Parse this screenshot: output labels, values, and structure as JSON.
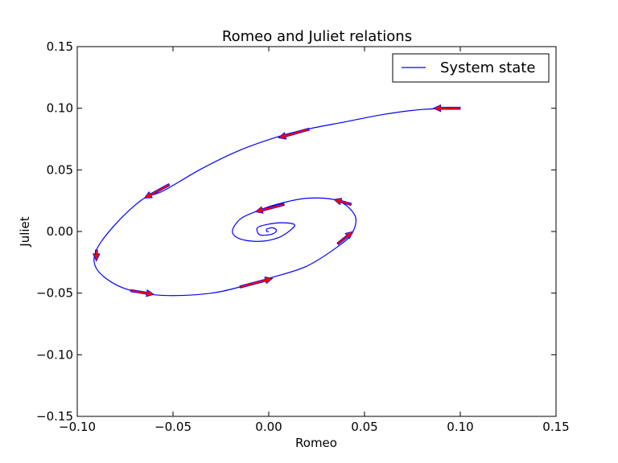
{
  "chart_data": {
    "type": "line",
    "title": "Romeo and Juliet relations",
    "xlabel": "Romeo",
    "ylabel": "Juliet",
    "xlim": [
      -0.1,
      0.15
    ],
    "ylim": [
      -0.15,
      0.15
    ],
    "x_ticks": [
      "−0.10",
      "−0.05",
      "0.00",
      "0.05",
      "0.10",
      "0.15"
    ],
    "x_tick_values": [
      -0.1,
      -0.05,
      0.0,
      0.05,
      0.1,
      0.15
    ],
    "y_ticks": [
      "−0.15",
      "−0.10",
      "−0.05",
      "0.00",
      "0.05",
      "0.10",
      "0.15"
    ],
    "y_tick_values": [
      -0.15,
      -0.1,
      -0.05,
      0.0,
      0.05,
      0.1,
      0.15
    ],
    "grid": false,
    "legend": {
      "position": "top-right",
      "entries": [
        "System state"
      ]
    },
    "series": [
      {
        "name": "System state",
        "color": "#0000ff",
        "trajectory": {
          "start": [
            0.1,
            0.1
          ],
          "decay_factor_per_revolution": 0.31,
          "revolutions": 6,
          "shape": "elliptical spiral converging to origin"
        },
        "points": [
          [
            0.1,
            0.1
          ],
          [
            0.08,
            0.099
          ],
          [
            0.06,
            0.095
          ],
          [
            0.04,
            0.089
          ],
          [
            0.02,
            0.083
          ],
          [
            0.005,
            0.077
          ],
          [
            -0.015,
            0.066
          ],
          [
            -0.035,
            0.051
          ],
          [
            -0.055,
            0.033
          ],
          [
            -0.066,
            0.026
          ],
          [
            -0.08,
            0.006
          ],
          [
            -0.09,
            -0.015
          ],
          [
            -0.09,
            -0.03
          ],
          [
            -0.08,
            -0.043
          ],
          [
            -0.066,
            -0.05
          ],
          [
            -0.05,
            -0.052
          ],
          [
            -0.03,
            -0.05
          ],
          [
            -0.015,
            -0.045
          ],
          [
            0.0,
            -0.038
          ],
          [
            0.02,
            -0.028
          ],
          [
            0.038,
            -0.01
          ],
          [
            0.044,
            0.0
          ],
          [
            0.045,
            0.013
          ],
          [
            0.036,
            0.025
          ],
          [
            0.02,
            0.027
          ],
          [
            0.004,
            0.022
          ],
          [
            -0.007,
            0.016
          ],
          [
            -0.015,
            0.01
          ],
          [
            -0.019,
            0.0
          ],
          [
            -0.015,
            -0.006
          ],
          [
            -0.005,
            -0.008
          ],
          [
            0.005,
            -0.005
          ],
          [
            0.012,
            0.002
          ],
          [
            0.013,
            0.006
          ],
          [
            0.005,
            0.007
          ],
          [
            -0.005,
            0.004
          ],
          [
            -0.006,
            0.0
          ],
          [
            -0.004,
            -0.003
          ],
          [
            0.002,
            -0.002
          ],
          [
            0.004,
            0.001
          ],
          [
            0.002,
            0.003
          ],
          [
            -0.001,
            0.002
          ],
          [
            -0.001,
            0.0
          ],
          [
            0.0,
            0.0
          ]
        ]
      }
    ],
    "quiver": {
      "color": "#ff0000",
      "outline_color": "#0000ff",
      "vectors": [
        {
          "x": 0.1,
          "y": 0.1,
          "dx": -0.014,
          "dy": 0.0
        },
        {
          "x": 0.021,
          "y": 0.083,
          "dx": -0.016,
          "dy": -0.007
        },
        {
          "x": -0.052,
          "y": 0.038,
          "dx": -0.013,
          "dy": -0.011
        },
        {
          "x": -0.09,
          "y": -0.015,
          "dx": 0.0,
          "dy": -0.009
        },
        {
          "x": -0.072,
          "y": -0.048,
          "dx": 0.012,
          "dy": -0.003
        },
        {
          "x": -0.015,
          "y": -0.045,
          "dx": 0.017,
          "dy": 0.007
        },
        {
          "x": 0.036,
          "y": -0.01,
          "dx": 0.008,
          "dy": 0.01
        },
        {
          "x": 0.043,
          "y": 0.022,
          "dx": -0.009,
          "dy": 0.004
        },
        {
          "x": 0.008,
          "y": 0.022,
          "dx": -0.015,
          "dy": -0.006
        }
      ]
    }
  }
}
